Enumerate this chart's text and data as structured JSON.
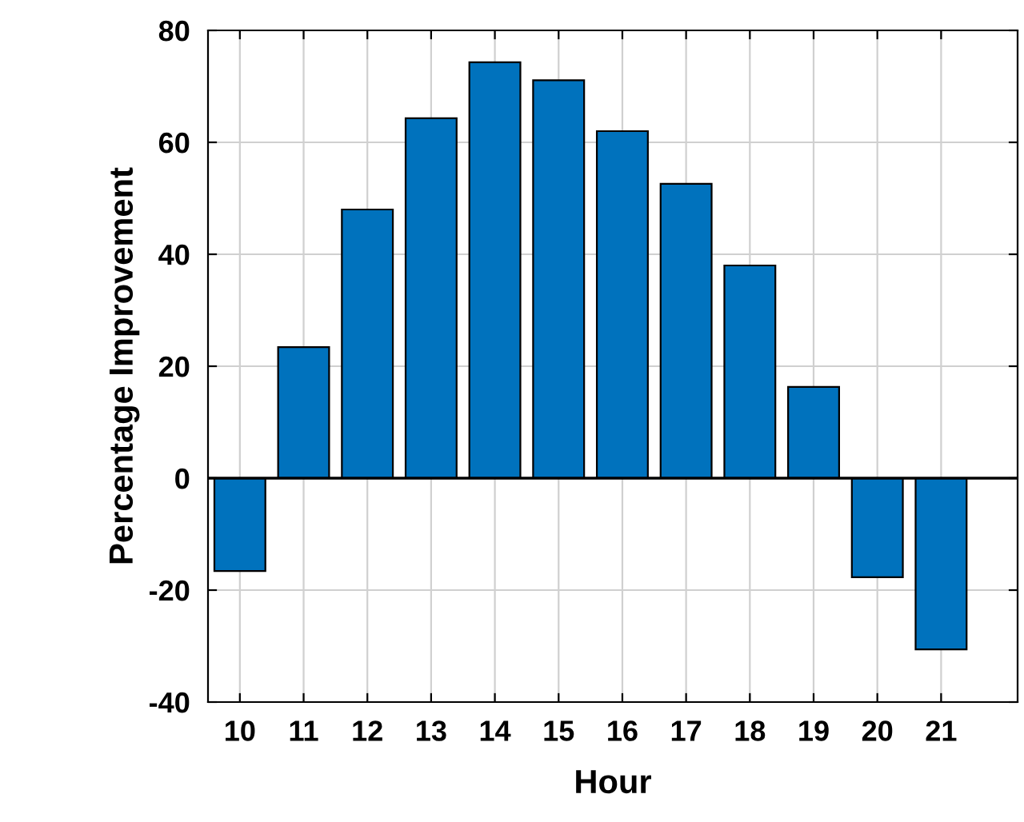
{
  "chart_data": {
    "type": "bar",
    "xlabel": "Hour",
    "ylabel": "Percentage Improvement",
    "x": [
      10,
      11,
      12,
      13,
      14,
      15,
      16,
      17,
      18,
      19,
      20,
      21
    ],
    "values": [
      -16.6,
      23.4,
      48,
      64.3,
      74.3,
      71.1,
      62,
      52.6,
      38,
      16.3,
      -17.7,
      -30.6
    ],
    "color": "#0072bd",
    "xlim": [
      9.5,
      22.2
    ],
    "xticks": [
      10,
      11,
      12,
      13,
      14,
      15,
      16,
      17,
      18,
      19,
      20,
      21
    ],
    "ylim": [
      -40,
      80
    ],
    "yticks": [
      -40,
      -20,
      0,
      20,
      40,
      60,
      80
    ],
    "ref_lines": [
      {
        "axis": "y",
        "value": 0,
        "color": "#000000"
      }
    ],
    "grid": true
  }
}
